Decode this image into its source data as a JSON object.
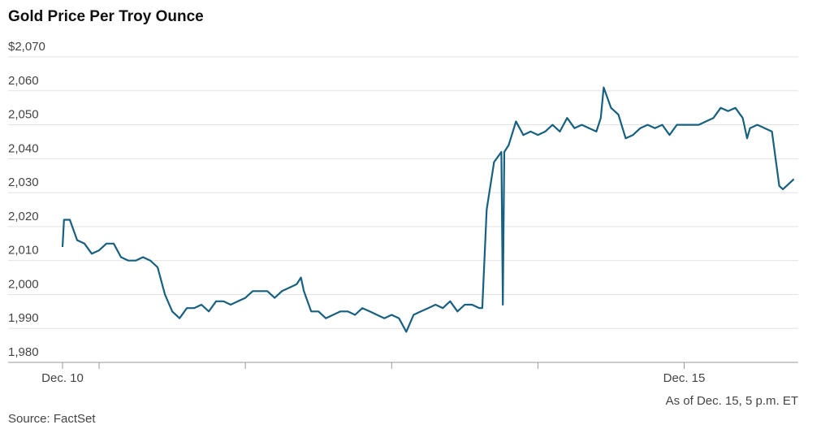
{
  "chart_data": {
    "type": "line",
    "title": "Gold Price Per Troy Ounce",
    "note": "As of Dec. 15, 5 p.m. ET",
    "source": "Source: FactSet",
    "grid": true,
    "xlim": [
      10.75,
      15.78
    ],
    "xticks": [
      {
        "value": 10.75,
        "label": "Dec. 10"
      },
      {
        "value": 15,
        "label": "Dec. 15"
      }
    ],
    "minor_xticks": [
      11,
      12,
      13,
      14
    ],
    "ylim": [
      1980,
      2070
    ],
    "yticks": [
      {
        "value": 1980,
        "label": "1,980"
      },
      {
        "value": 1990,
        "label": "1,990"
      },
      {
        "value": 2000,
        "label": "2,000"
      },
      {
        "value": 2010,
        "label": "2,010"
      },
      {
        "value": 2020,
        "label": "2,020"
      },
      {
        "value": 2030,
        "label": "2,030"
      },
      {
        "value": 2040,
        "label": "2,040"
      },
      {
        "value": 2050,
        "label": "2,050"
      },
      {
        "value": 2060,
        "label": "2,060"
      },
      {
        "value": 2070,
        "label": "$2,070"
      }
    ],
    "x": [
      10.75,
      10.76,
      10.8,
      10.85,
      10.9,
      10.95,
      11.0,
      11.05,
      11.1,
      11.15,
      11.2,
      11.25,
      11.3,
      11.35,
      11.4,
      11.45,
      11.5,
      11.55,
      11.6,
      11.65,
      11.7,
      11.75,
      11.8,
      11.85,
      11.9,
      11.95,
      12.0,
      12.05,
      12.1,
      12.15,
      12.2,
      12.25,
      12.3,
      12.35,
      12.38,
      12.4,
      12.45,
      12.5,
      12.55,
      12.6,
      12.65,
      12.7,
      12.75,
      12.8,
      12.85,
      12.9,
      12.95,
      13.0,
      13.05,
      13.1,
      13.15,
      13.2,
      13.25,
      13.3,
      13.35,
      13.4,
      13.45,
      13.5,
      13.55,
      13.6,
      13.62,
      13.65,
      13.7,
      13.75,
      13.76,
      13.77,
      13.8,
      13.85,
      13.9,
      13.95,
      14.0,
      14.05,
      14.1,
      14.15,
      14.2,
      14.25,
      14.3,
      14.35,
      14.4,
      14.43,
      14.45,
      14.5,
      14.55,
      14.6,
      14.65,
      14.7,
      14.75,
      14.8,
      14.85,
      14.9,
      14.95,
      15.0,
      15.05,
      15.1,
      15.15,
      15.2,
      15.25,
      15.3,
      15.35,
      15.4,
      15.43,
      15.45,
      15.5,
      15.55,
      15.6,
      15.65,
      15.675,
      15.7,
      15.75
    ],
    "series": [
      {
        "name": "Gold",
        "color": "#17607f",
        "values": [
          2014,
          2022,
          2022,
          2016,
          2015,
          2012,
          2013,
          2015,
          2015,
          2011,
          2010,
          2010,
          2011,
          2010,
          2008,
          2000,
          1995,
          1993,
          1996,
          1996,
          1997,
          1995,
          1998,
          1998,
          1997,
          1998,
          1999,
          2001,
          2001,
          2001,
          1999,
          2001,
          2002,
          2003,
          2005,
          2001,
          1995,
          1995,
          1993,
          1994,
          1995,
          1995,
          1994,
          1996,
          1995,
          1994,
          1993,
          1994,
          1993,
          1989,
          1994,
          1995,
          1996,
          1997,
          1996,
          1998,
          1995,
          1997,
          1997,
          1996,
          1996,
          2025,
          2039,
          2042,
          1997,
          2042,
          2044,
          2051,
          2047,
          2048,
          2047,
          2048,
          2050,
          2048,
          2052,
          2049,
          2050,
          2049,
          2048,
          2052,
          2061,
          2055,
          2053,
          2046,
          2047,
          2049,
          2050,
          2049,
          2050,
          2047,
          2050,
          2050,
          2050,
          2050,
          2051,
          2052,
          2055,
          2054,
          2055,
          2052,
          2046,
          2049,
          2050,
          2049,
          2048,
          2032,
          2031,
          2032,
          2034
        ]
      }
    ]
  }
}
